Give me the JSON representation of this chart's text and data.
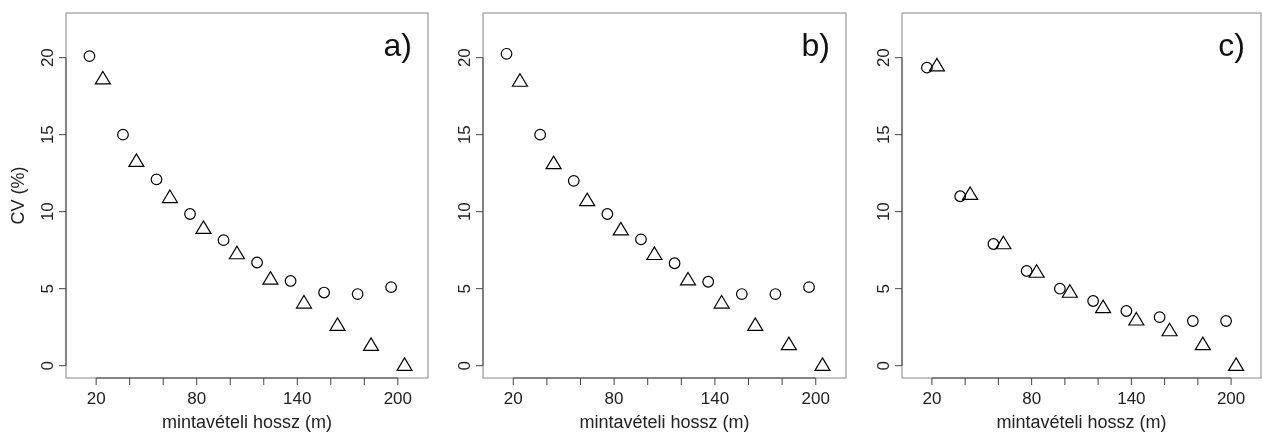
{
  "chart_data": [
    {
      "type": "scatter",
      "ylabel": "CV (%)",
      "xlabel": "mintavételi hossz (m)",
      "annotations": [
        "a)"
      ],
      "xlim": [
        2,
        218
      ],
      "xticks": [
        20,
        {
          "value": 40,
          "label": null
        },
        {
          "value": 60,
          "label": null
        },
        80,
        {
          "value": 100,
          "label": null
        },
        {
          "value": 120,
          "label": null
        },
        140,
        {
          "value": 160,
          "label": null
        },
        {
          "value": 180,
          "label": null
        },
        200
      ],
      "ylim": [
        -0.8,
        22.9
      ],
      "yticks": [
        0,
        5,
        10,
        15,
        20
      ],
      "grid": false,
      "series": [
        {
          "color": "#000000",
          "marker": "circle",
          "x": [
            16,
            36,
            56,
            76,
            96,
            116,
            136,
            156,
            176,
            196
          ],
          "values": [
            20.1,
            15.0,
            12.1,
            9.85,
            8.15,
            6.7,
            5.5,
            4.75,
            4.65,
            5.1
          ]
        },
        {
          "color": "#000000",
          "marker": "triangle",
          "x": [
            24,
            44,
            64,
            84,
            104,
            124,
            144,
            164,
            184,
            204
          ],
          "values": [
            18.65,
            13.3,
            10.95,
            8.95,
            7.3,
            5.65,
            4.1,
            2.65,
            1.35,
            0.05
          ]
        }
      ]
    },
    {
      "type": "scatter",
      "xlabel": "mintavételi hossz (m)",
      "annotations": [
        "b)"
      ],
      "xlim": [
        2,
        218
      ],
      "xticks": [
        20,
        {
          "value": 40,
          "label": null
        },
        {
          "value": 60,
          "label": null
        },
        80,
        {
          "value": 100,
          "label": null
        },
        {
          "value": 120,
          "label": null
        },
        140,
        {
          "value": 160,
          "label": null
        },
        {
          "value": 180,
          "label": null
        },
        200
      ],
      "ylim": [
        -0.8,
        22.9
      ],
      "yticks": [
        0,
        5,
        10,
        15,
        20
      ],
      "grid": false,
      "series": [
        {
          "color": "#000000",
          "marker": "circle",
          "x": [
            16,
            36,
            56,
            76,
            96,
            116,
            136,
            156,
            176,
            196
          ],
          "values": [
            20.25,
            15.0,
            12.0,
            9.85,
            8.2,
            6.65,
            5.45,
            4.65,
            4.65,
            5.1
          ]
        },
        {
          "color": "#000000",
          "marker": "triangle",
          "x": [
            24,
            44,
            64,
            84,
            104,
            124,
            144,
            164,
            184,
            204
          ],
          "values": [
            18.5,
            13.15,
            10.75,
            8.85,
            7.25,
            5.6,
            4.1,
            2.65,
            1.4,
            0.05
          ]
        }
      ]
    },
    {
      "type": "scatter",
      "xlabel": "mintavételi hossz (m)",
      "annotations": [
        "c)"
      ],
      "xlim": [
        2,
        218
      ],
      "xticks": [
        20,
        {
          "value": 40,
          "label": null
        },
        {
          "value": 60,
          "label": null
        },
        80,
        {
          "value": 100,
          "label": null
        },
        {
          "value": 120,
          "label": null
        },
        140,
        {
          "value": 160,
          "label": null
        },
        {
          "value": 180,
          "label": null
        },
        200
      ],
      "ylim": [
        -0.8,
        22.9
      ],
      "yticks": [
        0,
        5,
        10,
        15,
        20
      ],
      "grid": false,
      "series": [
        {
          "color": "#000000",
          "marker": "circle",
          "x": [
            17,
            37,
            57,
            77,
            97,
            117,
            137,
            157,
            177,
            197
          ],
          "values": [
            19.35,
            11.0,
            7.9,
            6.15,
            5.0,
            4.2,
            3.55,
            3.15,
            2.9,
            2.9
          ]
        },
        {
          "color": "#000000",
          "marker": "triangle",
          "x": [
            23,
            43,
            63,
            83,
            103,
            123,
            143,
            163,
            183,
            203
          ],
          "values": [
            19.5,
            11.15,
            7.95,
            6.1,
            4.8,
            3.8,
            3.0,
            2.3,
            1.4,
            0.05
          ]
        }
      ]
    }
  ]
}
